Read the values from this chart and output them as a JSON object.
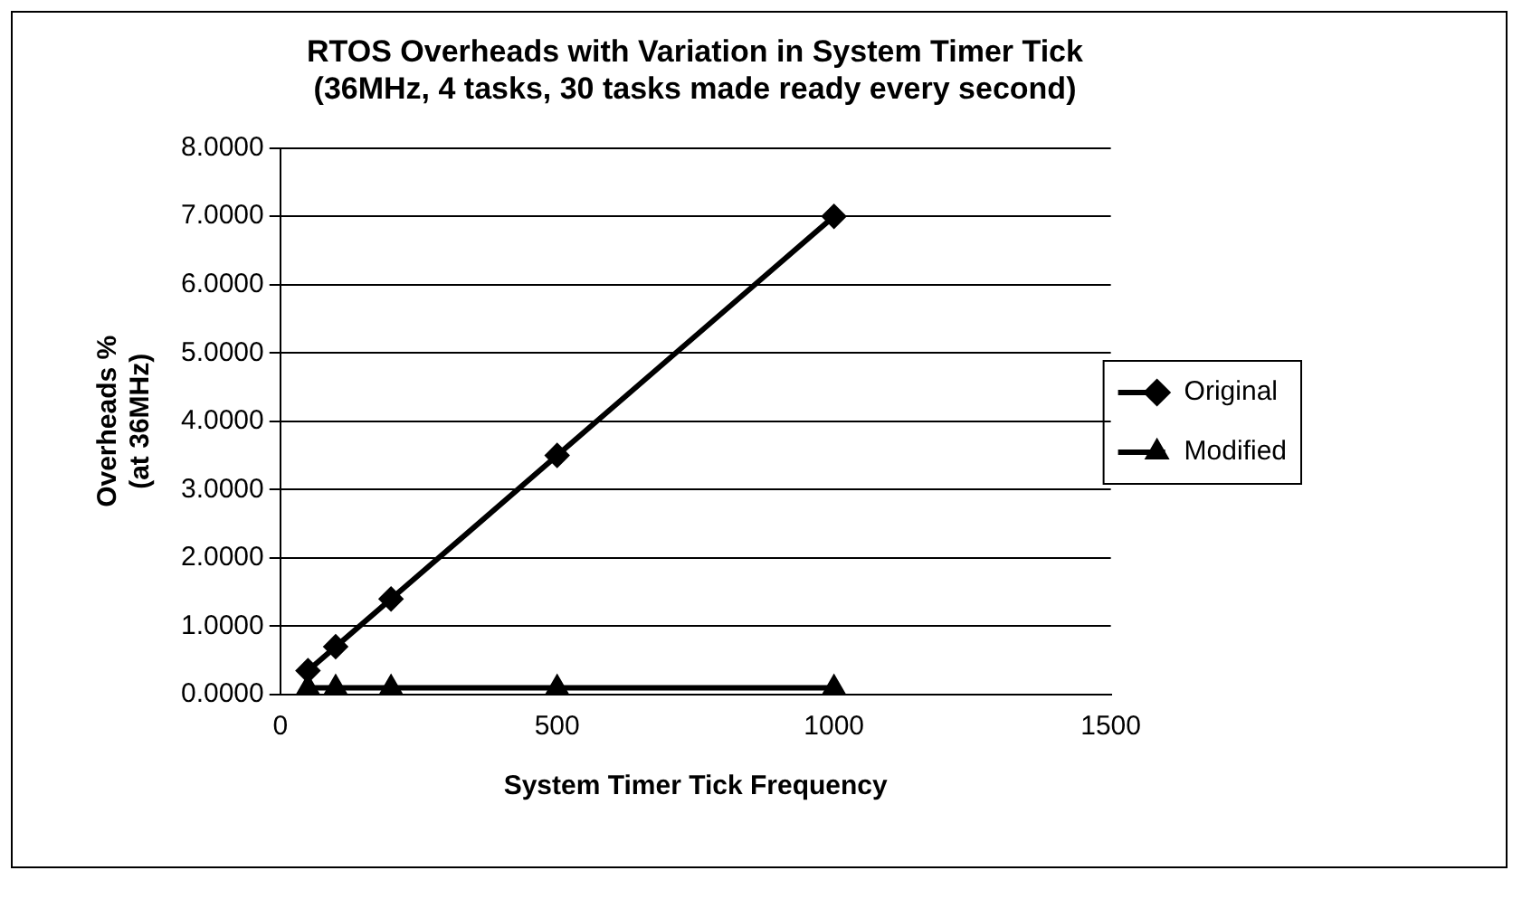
{
  "chart_data": {
    "type": "line",
    "title": "RTOS Overheads with Variation in System Timer Tick\n(36MHz, 4 tasks, 30 tasks made ready every second)",
    "xlabel": "System Timer Tick Frequency",
    "ylabel": "Overheads %\n(at 36MHz)",
    "x": [
      50,
      100,
      200,
      500,
      1000
    ],
    "series": [
      {
        "name": "Original",
        "color": "#000000",
        "marker": "diamond",
        "values": [
          0.35,
          0.7,
          1.4,
          3.5,
          7.0
        ]
      },
      {
        "name": "Modified",
        "color": "#000000",
        "marker": "triangle",
        "values": [
          0.1,
          0.1,
          0.1,
          0.1,
          0.1
        ]
      }
    ],
    "xlim": [
      0,
      1500
    ],
    "xticks": [
      0,
      500,
      1000,
      1500
    ],
    "ylim": [
      0,
      8
    ],
    "yticks": [
      {
        "value": 0,
        "label": "0.0000"
      },
      {
        "value": 1,
        "label": "1.0000"
      },
      {
        "value": 2,
        "label": "2.0000"
      },
      {
        "value": 3,
        "label": "3.0000"
      },
      {
        "value": 4,
        "label": "4.0000"
      },
      {
        "value": 5,
        "label": "5.0000"
      },
      {
        "value": 6,
        "label": "6.0000"
      },
      {
        "value": 7,
        "label": "7.0000"
      },
      {
        "value": 8,
        "label": "8.0000"
      }
    ],
    "grid": "y",
    "legend": "right",
    "line_style": "solid"
  }
}
